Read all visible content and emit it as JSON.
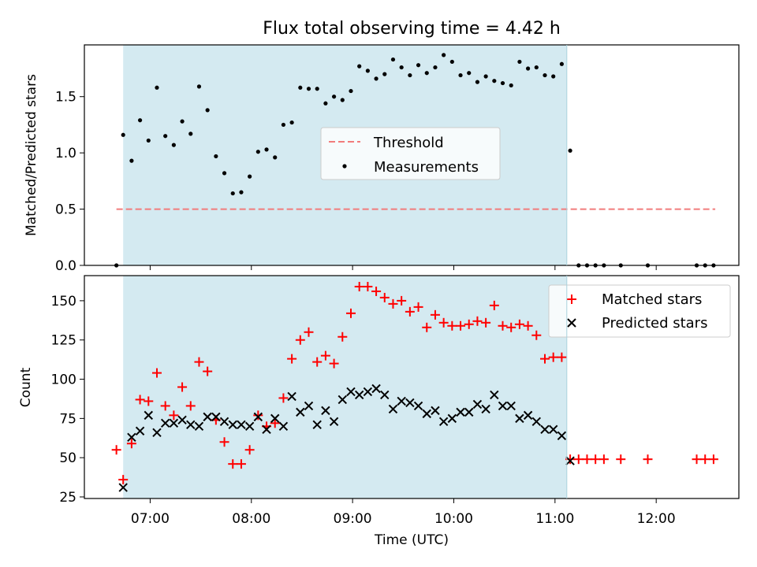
{
  "chart_data": [
    {
      "type": "scatter",
      "title": "Flux total observing time = 4.42 h",
      "ylabel": "Matched/Predicted stars",
      "xlabel": "",
      "xlim": [
        "06:21",
        "12:49"
      ],
      "ylim": [
        0,
        1.96
      ],
      "yticks": [
        0.0,
        0.5,
        1.0,
        1.5
      ],
      "ytick_labels": [
        "0.0",
        "0.5",
        "1.0",
        "1.5"
      ],
      "xticks": [
        "07:00",
        "08:00",
        "09:00",
        "10:00",
        "11:00",
        "12:00"
      ],
      "grid": false,
      "legend_position": "center",
      "shaded_interval": {
        "start": "06:44",
        "end": "11:07",
        "color": "#d4eaf1"
      },
      "threshold": {
        "name": "Threshold",
        "value": 0.5,
        "x_start": "06:40",
        "x_end": "12:35",
        "color": "#f17c7c",
        "style": "dashed"
      },
      "series": [
        {
          "name": "Measurements",
          "color": "#000000",
          "marker": "dot",
          "points": [
            [
              "06:40",
              0.0
            ],
            [
              "06:44",
              1.16
            ],
            [
              "06:49",
              0.93
            ],
            [
              "06:54",
              1.29
            ],
            [
              "06:59",
              1.11
            ],
            [
              "07:04",
              1.58
            ],
            [
              "07:09",
              1.15
            ],
            [
              "07:14",
              1.07
            ],
            [
              "07:19",
              1.28
            ],
            [
              "07:24",
              1.17
            ],
            [
              "07:29",
              1.59
            ],
            [
              "07:34",
              1.38
            ],
            [
              "07:39",
              0.97
            ],
            [
              "07:44",
              0.82
            ],
            [
              "07:49",
              0.64
            ],
            [
              "07:54",
              0.65
            ],
            [
              "07:59",
              0.79
            ],
            [
              "08:04",
              1.01
            ],
            [
              "08:09",
              1.03
            ],
            [
              "08:14",
              0.96
            ],
            [
              "08:19",
              1.25
            ],
            [
              "08:24",
              1.27
            ],
            [
              "08:29",
              1.58
            ],
            [
              "08:34",
              1.57
            ],
            [
              "08:39",
              1.57
            ],
            [
              "08:44",
              1.44
            ],
            [
              "08:49",
              1.5
            ],
            [
              "08:54",
              1.47
            ],
            [
              "08:59",
              1.55
            ],
            [
              "09:04",
              1.77
            ],
            [
              "09:09",
              1.73
            ],
            [
              "09:14",
              1.66
            ],
            [
              "09:19",
              1.7
            ],
            [
              "09:24",
              1.83
            ],
            [
              "09:29",
              1.76
            ],
            [
              "09:34",
              1.69
            ],
            [
              "09:39",
              1.78
            ],
            [
              "09:44",
              1.71
            ],
            [
              "09:49",
              1.76
            ],
            [
              "09:54",
              1.87
            ],
            [
              "09:59",
              1.81
            ],
            [
              "10:04",
              1.69
            ],
            [
              "10:09",
              1.71
            ],
            [
              "10:14",
              1.63
            ],
            [
              "10:19",
              1.68
            ],
            [
              "10:24",
              1.64
            ],
            [
              "10:29",
              1.62
            ],
            [
              "10:34",
              1.6
            ],
            [
              "10:39",
              1.81
            ],
            [
              "10:44",
              1.75
            ],
            [
              "10:49",
              1.76
            ],
            [
              "10:54",
              1.69
            ],
            [
              "10:59",
              1.68
            ],
            [
              "11:04",
              1.79
            ],
            [
              "11:09",
              1.02
            ],
            [
              "11:14",
              0.0
            ],
            [
              "11:19",
              0.0
            ],
            [
              "11:24",
              0.0
            ],
            [
              "11:29",
              0.0
            ],
            [
              "11:39",
              0.0
            ],
            [
              "11:55",
              0.0
            ],
            [
              "12:24",
              0.0
            ],
            [
              "12:29",
              0.0
            ],
            [
              "12:34",
              0.0
            ]
          ]
        }
      ]
    },
    {
      "type": "scatter",
      "title": "",
      "ylabel": "Count",
      "xlabel": "Time (UTC)",
      "xlim": [
        "06:21",
        "12:49"
      ],
      "ylim": [
        24,
        166
      ],
      "yticks": [
        25,
        50,
        75,
        100,
        125,
        150
      ],
      "ytick_labels": [
        "25",
        "50",
        "75",
        "100",
        "125",
        "150"
      ],
      "xticks": [
        "07:00",
        "08:00",
        "09:00",
        "10:00",
        "11:00",
        "12:00"
      ],
      "xtick_labels": [
        "07:00",
        "08:00",
        "09:00",
        "10:00",
        "11:00",
        "12:00"
      ],
      "grid": false,
      "legend_position": "upper right",
      "shaded_interval": {
        "start": "06:44",
        "end": "11:07",
        "color": "#d4eaf1"
      },
      "series": [
        {
          "name": "Matched stars",
          "color": "#ff0000",
          "marker": "plus",
          "points": [
            [
              "06:40",
              55
            ],
            [
              "06:44",
              36
            ],
            [
              "06:49",
              59
            ],
            [
              "06:54",
              87
            ],
            [
              "06:59",
              86
            ],
            [
              "07:04",
              104
            ],
            [
              "07:09",
              83
            ],
            [
              "07:14",
              77
            ],
            [
              "07:19",
              95
            ],
            [
              "07:24",
              83
            ],
            [
              "07:29",
              111
            ],
            [
              "07:34",
              105
            ],
            [
              "07:39",
              74
            ],
            [
              "07:44",
              60
            ],
            [
              "07:49",
              46
            ],
            [
              "07:54",
              46
            ],
            [
              "07:59",
              55
            ],
            [
              "08:04",
              77
            ],
            [
              "08:09",
              70
            ],
            [
              "08:14",
              72
            ],
            [
              "08:19",
              88
            ],
            [
              "08:24",
              113
            ],
            [
              "08:29",
              125
            ],
            [
              "08:34",
              130
            ],
            [
              "08:39",
              111
            ],
            [
              "08:44",
              115
            ],
            [
              "08:49",
              110
            ],
            [
              "08:54",
              127
            ],
            [
              "08:59",
              142
            ],
            [
              "09:04",
              159
            ],
            [
              "09:09",
              159
            ],
            [
              "09:14",
              156
            ],
            [
              "09:19",
              152
            ],
            [
              "09:24",
              148
            ],
            [
              "09:29",
              150
            ],
            [
              "09:34",
              143
            ],
            [
              "09:39",
              146
            ],
            [
              "09:44",
              133
            ],
            [
              "09:49",
              141
            ],
            [
              "09:54",
              136
            ],
            [
              "09:59",
              134
            ],
            [
              "10:04",
              134
            ],
            [
              "10:09",
              135
            ],
            [
              "10:14",
              137
            ],
            [
              "10:19",
              136
            ],
            [
              "10:24",
              147
            ],
            [
              "10:29",
              134
            ],
            [
              "10:34",
              133
            ],
            [
              "10:39",
              135
            ],
            [
              "10:44",
              134
            ],
            [
              "10:49",
              128
            ],
            [
              "10:54",
              113
            ],
            [
              "10:59",
              114
            ],
            [
              "11:04",
              114
            ],
            [
              "11:09",
              49
            ],
            [
              "11:14",
              49
            ],
            [
              "11:19",
              49
            ],
            [
              "11:24",
              49
            ],
            [
              "11:29",
              49
            ],
            [
              "11:39",
              49
            ],
            [
              "11:55",
              49
            ],
            [
              "12:24",
              49
            ],
            [
              "12:29",
              49
            ],
            [
              "12:34",
              49
            ]
          ]
        },
        {
          "name": "Predicted stars",
          "color": "#000000",
          "marker": "cross",
          "points": [
            [
              "06:44",
              31
            ],
            [
              "06:49",
              63
            ],
            [
              "06:54",
              67
            ],
            [
              "06:59",
              77
            ],
            [
              "07:04",
              66
            ],
            [
              "07:09",
              72
            ],
            [
              "07:14",
              72
            ],
            [
              "07:19",
              74
            ],
            [
              "07:24",
              71
            ],
            [
              "07:29",
              70
            ],
            [
              "07:34",
              76
            ],
            [
              "07:39",
              76
            ],
            [
              "07:44",
              73
            ],
            [
              "07:49",
              71
            ],
            [
              "07:54",
              71
            ],
            [
              "07:59",
              70
            ],
            [
              "08:04",
              76
            ],
            [
              "08:09",
              68
            ],
            [
              "08:14",
              75
            ],
            [
              "08:19",
              70
            ],
            [
              "08:24",
              89
            ],
            [
              "08:29",
              79
            ],
            [
              "08:34",
              83
            ],
            [
              "08:39",
              71
            ],
            [
              "08:44",
              80
            ],
            [
              "08:49",
              73
            ],
            [
              "08:54",
              87
            ],
            [
              "08:59",
              92
            ],
            [
              "09:04",
              90
            ],
            [
              "09:09",
              92
            ],
            [
              "09:14",
              94
            ],
            [
              "09:19",
              90
            ],
            [
              "09:24",
              81
            ],
            [
              "09:29",
              86
            ],
            [
              "09:34",
              85
            ],
            [
              "09:39",
              83
            ],
            [
              "09:44",
              78
            ],
            [
              "09:49",
              80
            ],
            [
              "09:54",
              73
            ],
            [
              "09:59",
              75
            ],
            [
              "10:04",
              79
            ],
            [
              "10:09",
              79
            ],
            [
              "10:14",
              84
            ],
            [
              "10:19",
              81
            ],
            [
              "10:24",
              90
            ],
            [
              "10:29",
              83
            ],
            [
              "10:34",
              83
            ],
            [
              "10:39",
              75
            ],
            [
              "10:44",
              77
            ],
            [
              "10:49",
              73
            ],
            [
              "10:54",
              68
            ],
            [
              "10:59",
              68
            ],
            [
              "11:04",
              64
            ],
            [
              "11:09",
              48
            ]
          ]
        }
      ]
    }
  ]
}
